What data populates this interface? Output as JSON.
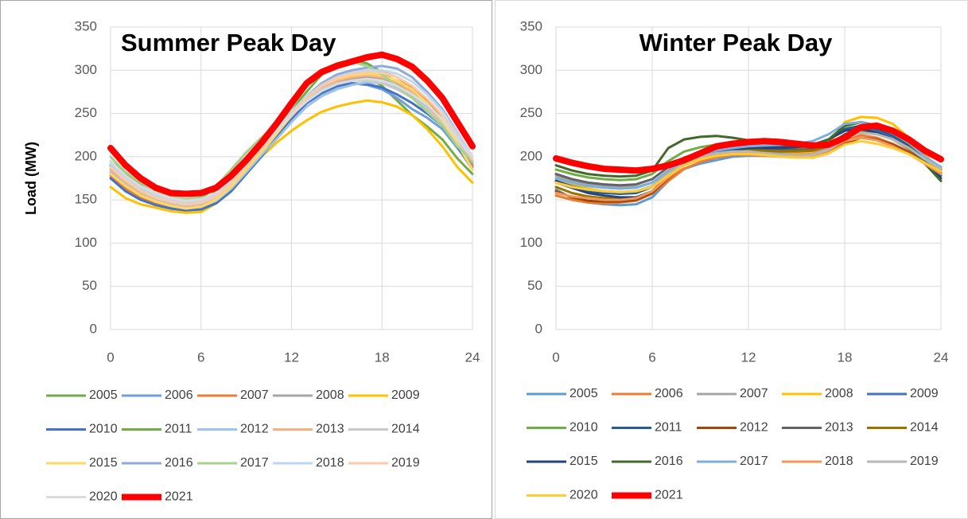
{
  "chart_data": [
    {
      "type": "line",
      "title": "Summer Peak Day",
      "y_label": "Load (MW)",
      "x": [
        0,
        1,
        2,
        3,
        4,
        5,
        6,
        7,
        8,
        9,
        10,
        11,
        12,
        13,
        14,
        15,
        16,
        17,
        18,
        19,
        20,
        21,
        22,
        23,
        24
      ],
      "xlim": [
        0,
        24
      ],
      "xticks": [
        0,
        6,
        12,
        18,
        24
      ],
      "ylim": [
        0,
        350
      ],
      "yticks": [
        0,
        50,
        100,
        150,
        200,
        250,
        300,
        350
      ],
      "grid": true,
      "series": [
        {
          "name": "2005",
          "color": "#70ad47",
          "values": [
            190,
            172,
            160,
            151,
            146,
            143,
            147,
            160,
            178,
            195,
            212,
            232,
            252,
            270,
            285,
            292,
            295,
            292,
            282,
            265,
            248,
            235,
            220,
            198,
            180
          ]
        },
        {
          "name": "2006",
          "color": "#6f9fd8",
          "values": [
            180,
            165,
            154,
            146,
            141,
            139,
            141,
            148,
            163,
            183,
            203,
            223,
            245,
            262,
            272,
            280,
            285,
            283,
            278,
            268,
            255,
            245,
            232,
            210,
            188
          ]
        },
        {
          "name": "2007",
          "color": "#ed7d31",
          "values": [
            178,
            163,
            152,
            145,
            140,
            138,
            140,
            148,
            163,
            183,
            205,
            225,
            246,
            264,
            276,
            285,
            292,
            298,
            298,
            292,
            280,
            265,
            245,
            218,
            190
          ]
        },
        {
          "name": "2008",
          "color": "#a5a5a5",
          "values": [
            185,
            170,
            158,
            150,
            145,
            142,
            144,
            151,
            166,
            186,
            206,
            226,
            246,
            264,
            277,
            285,
            290,
            292,
            290,
            283,
            272,
            258,
            240,
            215,
            192
          ]
        },
        {
          "name": "2009",
          "color": "#ffc000",
          "values": [
            165,
            152,
            145,
            141,
            137,
            135,
            136,
            146,
            162,
            182,
            200,
            216,
            230,
            242,
            252,
            258,
            262,
            265,
            263,
            258,
            248,
            232,
            212,
            188,
            170
          ]
        },
        {
          "name": "2010",
          "color": "#4472c4",
          "values": [
            175,
            160,
            150,
            144,
            140,
            138,
            139,
            146,
            160,
            180,
            200,
            222,
            244,
            262,
            274,
            282,
            285,
            284,
            280,
            272,
            262,
            250,
            236,
            212,
            185
          ]
        },
        {
          "name": "2011",
          "color": "#70ad47",
          "values": [
            195,
            180,
            168,
            158,
            152,
            149,
            152,
            165,
            185,
            205,
            222,
            238,
            255,
            275,
            295,
            308,
            312,
            308,
            298,
            285,
            270,
            255,
            238,
            212,
            195
          ]
        },
        {
          "name": "2012",
          "color": "#9dc3e6",
          "values": [
            182,
            168,
            157,
            149,
            144,
            141,
            142,
            149,
            163,
            182,
            202,
            220,
            240,
            258,
            270,
            278,
            283,
            286,
            285,
            280,
            270,
            258,
            242,
            218,
            195
          ]
        },
        {
          "name": "2013",
          "color": "#f4b183",
          "values": [
            185,
            170,
            158,
            151,
            146,
            143,
            145,
            152,
            167,
            187,
            207,
            227,
            247,
            266,
            280,
            288,
            292,
            294,
            292,
            286,
            275,
            260,
            240,
            215,
            195
          ]
        },
        {
          "name": "2014",
          "color": "#c9c9c9",
          "values": [
            188,
            172,
            160,
            152,
            147,
            144,
            146,
            153,
            168,
            188,
            208,
            228,
            248,
            266,
            278,
            285,
            288,
            288,
            285,
            278,
            268,
            255,
            238,
            215,
            195
          ]
        },
        {
          "name": "2015",
          "color": "#ffd966",
          "values": [
            180,
            166,
            155,
            148,
            143,
            140,
            142,
            150,
            165,
            185,
            205,
            226,
            248,
            268,
            282,
            290,
            294,
            296,
            294,
            288,
            278,
            262,
            242,
            215,
            185
          ]
        },
        {
          "name": "2016",
          "color": "#8faadc",
          "values": [
            190,
            175,
            163,
            155,
            149,
            146,
            148,
            155,
            170,
            190,
            210,
            230,
            252,
            270,
            285,
            295,
            300,
            303,
            305,
            302,
            292,
            275,
            255,
            228,
            200
          ]
        },
        {
          "name": "2017",
          "color": "#a9d18e",
          "values": [
            200,
            182,
            170,
            160,
            154,
            151,
            154,
            166,
            185,
            205,
            222,
            238,
            256,
            282,
            300,
            308,
            310,
            305,
            295,
            282,
            268,
            252,
            236,
            212,
            195
          ]
        },
        {
          "name": "2018",
          "color": "#bdd7ee",
          "values": [
            192,
            176,
            164,
            156,
            150,
            147,
            149,
            156,
            171,
            191,
            211,
            231,
            252,
            270,
            283,
            292,
            297,
            300,
            300,
            296,
            287,
            272,
            253,
            227,
            200
          ]
        },
        {
          "name": "2019",
          "color": "#f8cbad",
          "values": [
            188,
            173,
            161,
            153,
            148,
            145,
            147,
            154,
            169,
            189,
            209,
            229,
            250,
            268,
            282,
            291,
            296,
            298,
            297,
            292,
            282,
            267,
            248,
            222,
            197
          ]
        },
        {
          "name": "2020",
          "color": "#dbdbdb",
          "values": [
            195,
            178,
            166,
            158,
            152,
            149,
            151,
            158,
            173,
            193,
            212,
            230,
            248,
            264,
            276,
            284,
            288,
            290,
            288,
            282,
            272,
            260,
            244,
            220,
            200
          ]
        },
        {
          "name": "2021",
          "color": "#ff0000",
          "values": [
            210,
            190,
            175,
            164,
            158,
            157,
            158,
            164,
            178,
            196,
            216,
            238,
            262,
            285,
            298,
            305,
            310,
            315,
            318,
            313,
            304,
            288,
            268,
            240,
            212
          ]
        }
      ]
    },
    {
      "type": "line",
      "title": "Winter Peak Day",
      "x": [
        0,
        1,
        2,
        3,
        4,
        5,
        6,
        7,
        8,
        9,
        10,
        11,
        12,
        13,
        14,
        15,
        16,
        17,
        18,
        19,
        20,
        21,
        22,
        23,
        24
      ],
      "xlim": [
        0,
        24
      ],
      "xticks": [
        0,
        6,
        12,
        18,
        24
      ],
      "ylim": [
        0,
        350
      ],
      "yticks": [
        0,
        50,
        100,
        150,
        200,
        250,
        300,
        350
      ],
      "grid": true,
      "series": [
        {
          "name": "2005",
          "color": "#5b9bd5",
          "values": [
            162,
            152,
            147,
            145,
            144,
            145,
            153,
            172,
            186,
            192,
            196,
            200,
            201,
            201,
            201,
            202,
            204,
            212,
            226,
            232,
            228,
            220,
            210,
            196,
            183
          ]
        },
        {
          "name": "2006",
          "color": "#ed7d31",
          "values": [
            155,
            150,
            147,
            146,
            147,
            149,
            157,
            172,
            186,
            194,
            199,
            202,
            202,
            201,
            200,
            200,
            201,
            207,
            218,
            225,
            222,
            215,
            206,
            193,
            180
          ]
        },
        {
          "name": "2007",
          "color": "#a5a5a5",
          "values": [
            178,
            172,
            168,
            166,
            165,
            165,
            170,
            182,
            193,
            199,
            203,
            205,
            206,
            205,
            204,
            204,
            205,
            210,
            222,
            228,
            226,
            220,
            210,
            198,
            187
          ]
        },
        {
          "name": "2008",
          "color": "#ffc000",
          "values": [
            175,
            168,
            163,
            160,
            158,
            158,
            165,
            182,
            198,
            206,
            209,
            210,
            210,
            208,
            206,
            205,
            206,
            215,
            240,
            246,
            245,
            238,
            222,
            202,
            185
          ]
        },
        {
          "name": "2009",
          "color": "#4472c4",
          "values": [
            172,
            166,
            162,
            160,
            159,
            160,
            166,
            180,
            192,
            200,
            205,
            208,
            210,
            210,
            210,
            211,
            213,
            220,
            232,
            234,
            230,
            222,
            212,
            198,
            185
          ]
        },
        {
          "name": "2010",
          "color": "#70ad47",
          "values": [
            185,
            180,
            176,
            174,
            173,
            174,
            180,
            195,
            206,
            211,
            214,
            215,
            214,
            212,
            210,
            210,
            211,
            218,
            235,
            240,
            236,
            228,
            215,
            198,
            182
          ]
        },
        {
          "name": "2011",
          "color": "#255e91",
          "values": [
            170,
            164,
            160,
            158,
            157,
            158,
            165,
            180,
            193,
            201,
            206,
            209,
            211,
            212,
            212,
            213,
            214,
            220,
            232,
            236,
            232,
            224,
            213,
            197,
            178
          ]
        },
        {
          "name": "2012",
          "color": "#9e480e",
          "values": [
            160,
            153,
            149,
            148,
            148,
            150,
            158,
            175,
            190,
            198,
            202,
            204,
            204,
            203,
            201,
            200,
            199,
            204,
            215,
            222,
            220,
            214,
            205,
            192,
            180
          ]
        },
        {
          "name": "2013",
          "color": "#636363",
          "values": [
            180,
            174,
            170,
            168,
            167,
            168,
            174,
            188,
            199,
            205,
            208,
            210,
            210,
            209,
            208,
            208,
            209,
            214,
            226,
            230,
            227,
            220,
            210,
            196,
            185
          ]
        },
        {
          "name": "2014",
          "color": "#997300",
          "values": [
            165,
            158,
            154,
            152,
            151,
            152,
            160,
            178,
            194,
            202,
            206,
            208,
            208,
            207,
            206,
            206,
            207,
            212,
            225,
            230,
            227,
            220,
            209,
            195,
            182
          ]
        },
        {
          "name": "2015",
          "color": "#264478",
          "values": [
            172,
            164,
            158,
            155,
            153,
            153,
            160,
            177,
            191,
            200,
            205,
            208,
            210,
            210,
            210,
            211,
            213,
            220,
            230,
            232,
            228,
            220,
            210,
            195,
            175
          ]
        },
        {
          "name": "2016",
          "color": "#43682b",
          "values": [
            190,
            184,
            180,
            178,
            177,
            178,
            184,
            210,
            220,
            223,
            224,
            222,
            219,
            216,
            214,
            213,
            213,
            220,
            236,
            240,
            236,
            228,
            215,
            192,
            172
          ]
        },
        {
          "name": "2017",
          "color": "#7cafdd",
          "values": [
            175,
            170,
            166,
            164,
            163,
            164,
            170,
            184,
            196,
            203,
            207,
            210,
            212,
            213,
            214,
            215,
            218,
            226,
            238,
            240,
            235,
            227,
            216,
            200,
            188
          ]
        },
        {
          "name": "2018",
          "color": "#f1975a",
          "values": [
            158,
            154,
            152,
            150,
            150,
            152,
            160,
            176,
            190,
            198,
            202,
            204,
            204,
            203,
            202,
            202,
            203,
            208,
            218,
            222,
            219,
            212,
            203,
            192,
            180
          ]
        },
        {
          "name": "2019",
          "color": "#b7b7b7",
          "values": [
            170,
            165,
            162,
            160,
            159,
            160,
            166,
            180,
            193,
            200,
            204,
            206,
            206,
            204,
            202,
            201,
            202,
            208,
            222,
            228,
            226,
            220,
            210,
            197,
            186
          ]
        },
        {
          "name": "2020",
          "color": "#ffcd33",
          "values": [
            170,
            165,
            162,
            160,
            159,
            160,
            165,
            178,
            190,
            197,
            201,
            203,
            203,
            202,
            200,
            199,
            199,
            204,
            214,
            218,
            215,
            210,
            203,
            193,
            183
          ]
        },
        {
          "name": "2021",
          "color": "#ff0000",
          "values": [
            198,
            193,
            189,
            186,
            185,
            184,
            186,
            190,
            196,
            204,
            212,
            215,
            217,
            218,
            217,
            215,
            213,
            214,
            222,
            234,
            236,
            230,
            220,
            207,
            197
          ]
        }
      ]
    }
  ]
}
